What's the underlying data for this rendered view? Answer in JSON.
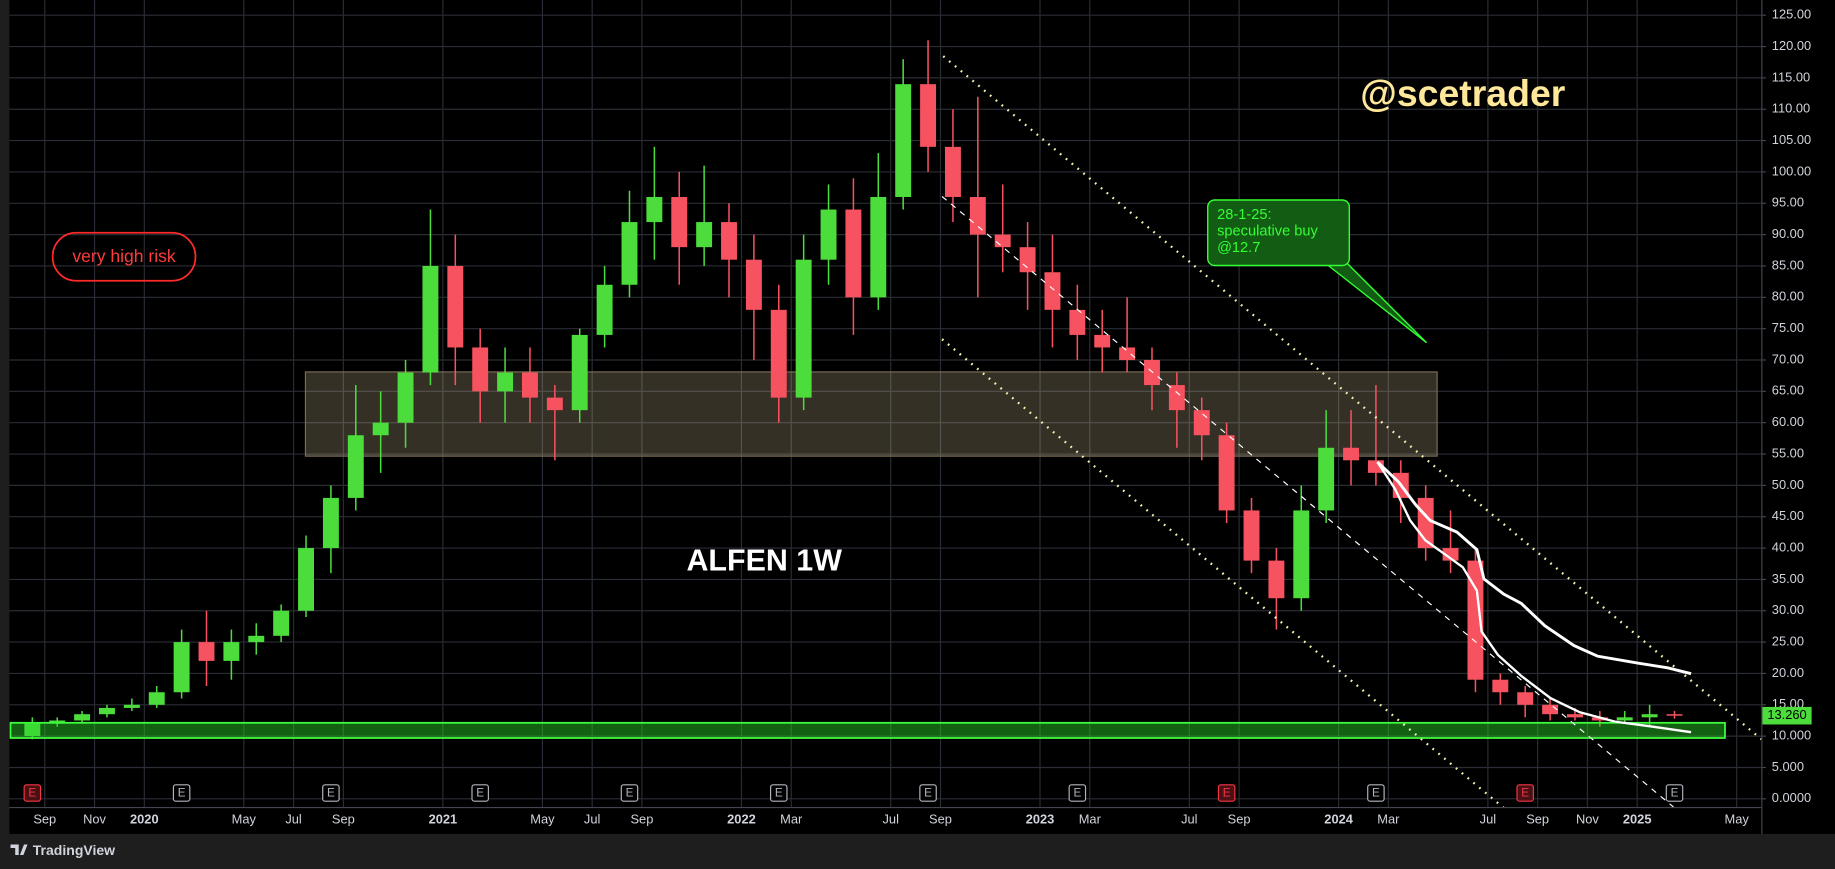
{
  "chart_data": {
    "type": "candlestick",
    "title": "ALFEN 1W",
    "watermark": "@scetrader",
    "x": [
      "2019-08",
      "2019-09",
      "2019-10",
      "2019-11",
      "2019-12",
      "2020-01",
      "2020-02",
      "2020-03",
      "2020-04",
      "2020-05",
      "2020-06",
      "2020-07",
      "2020-08",
      "2020-09",
      "2020-10",
      "2020-11",
      "2020-12",
      "2021-01",
      "2021-02",
      "2021-03",
      "2021-04",
      "2021-05",
      "2021-06",
      "2021-07",
      "2021-08",
      "2021-09",
      "2021-10",
      "2021-11",
      "2021-12",
      "2022-01",
      "2022-02",
      "2022-03",
      "2022-04",
      "2022-05",
      "2022-06",
      "2022-07",
      "2022-08",
      "2022-09",
      "2022-10",
      "2022-11",
      "2022-12",
      "2023-01",
      "2023-02",
      "2023-03",
      "2023-04",
      "2023-05",
      "2023-06",
      "2023-07",
      "2023-08",
      "2023-09",
      "2023-10",
      "2023-11",
      "2023-12",
      "2024-01",
      "2024-02",
      "2024-03",
      "2024-04",
      "2024-05",
      "2024-06",
      "2024-07",
      "2024-08",
      "2024-09",
      "2024-10",
      "2024-11",
      "2024-12",
      "2025-01",
      "2025-02"
    ],
    "open": [
      10,
      12,
      12.5,
      13.5,
      14.5,
      15,
      17,
      25,
      22,
      25,
      26,
      30,
      40,
      48,
      58,
      60,
      68,
      85,
      72,
      65,
      68,
      64,
      62,
      74,
      82,
      92,
      96,
      88,
      92,
      86,
      78,
      64,
      86,
      94,
      80,
      96,
      114,
      104,
      96,
      90,
      88,
      84,
      78,
      74,
      72,
      70,
      66,
      62,
      58,
      46,
      38,
      32,
      46,
      56,
      54,
      52,
      48,
      40,
      38,
      19,
      17,
      15,
      13.5,
      13,
      12.5,
      13,
      13.5
    ],
    "high": [
      13,
      13,
      14,
      15,
      16,
      18,
      27,
      30,
      27,
      28,
      31,
      42,
      50,
      66,
      65,
      70,
      94,
      90,
      75,
      72,
      72,
      66,
      75,
      85,
      97,
      104,
      100,
      101,
      95,
      90,
      82,
      90,
      98,
      99,
      103,
      118,
      121,
      110,
      112,
      98,
      92,
      90,
      82,
      78,
      80,
      72,
      68,
      64,
      60,
      48,
      40,
      50,
      62,
      62,
      66,
      54,
      50,
      46,
      40,
      20,
      18,
      16,
      14.5,
      14,
      14,
      15,
      14
    ],
    "low": [
      9.5,
      11.5,
      12,
      13,
      14,
      14.5,
      16,
      18,
      19,
      23,
      25,
      29,
      36,
      46,
      52,
      56,
      66,
      66,
      60,
      60,
      60,
      54,
      60,
      72,
      80,
      86,
      82,
      85,
      80,
      70,
      60,
      62,
      82,
      74,
      78,
      94,
      100,
      92,
      80,
      84,
      78,
      72,
      70,
      68,
      68,
      62,
      56,
      54,
      44,
      36,
      27,
      30,
      44,
      50,
      50,
      44,
      38,
      36,
      17,
      15,
      13,
      12.5,
      12.5,
      11.5,
      12,
      11.5,
      12.8
    ],
    "close": [
      12,
      12.5,
      13.5,
      14.5,
      15,
      17,
      25,
      22,
      25,
      26,
      30,
      40,
      48,
      58,
      60,
      68,
      85,
      72,
      65,
      68,
      64,
      62,
      74,
      82,
      92,
      96,
      88,
      92,
      86,
      78,
      64,
      86,
      94,
      80,
      96,
      114,
      104,
      96,
      90,
      88,
      84,
      78,
      74,
      72,
      70,
      66,
      62,
      58,
      46,
      38,
      32,
      46,
      56,
      54,
      52,
      48,
      40,
      38,
      19,
      17,
      15,
      13.5,
      13,
      12.5,
      13,
      13.5,
      13.26
    ],
    "up_color": "#4cdd3c",
    "down_color": "#f7525f",
    "last_price": {
      "value": 13.26,
      "label": "13.260"
    },
    "xlim": [
      "2019-08",
      "2025-05"
    ],
    "ylim": [
      0,
      125
    ],
    "grid": true,
    "xticks": [
      {
        "value": "2019-09",
        "label": "Sep"
      },
      {
        "value": "2019-11",
        "label": "Nov"
      },
      {
        "value": "2020-01",
        "label": "2020"
      },
      {
        "value": "2020-05",
        "label": "May"
      },
      {
        "value": "2020-07",
        "label": "Jul"
      },
      {
        "value": "2020-09",
        "label": "Sep"
      },
      {
        "value": "2021-01",
        "label": "2021"
      },
      {
        "value": "2021-05",
        "label": "May"
      },
      {
        "value": "2021-07",
        "label": "Jul"
      },
      {
        "value": "2021-09",
        "label": "Sep"
      },
      {
        "value": "2022-01",
        "label": "2022"
      },
      {
        "value": "2022-03",
        "label": "Mar"
      },
      {
        "value": "2022-07",
        "label": "Jul"
      },
      {
        "value": "2022-09",
        "label": "Sep"
      },
      {
        "value": "2023-01",
        "label": "2023"
      },
      {
        "value": "2023-03",
        "label": "Mar"
      },
      {
        "value": "2023-07",
        "label": "Jul"
      },
      {
        "value": "2023-09",
        "label": "Sep"
      },
      {
        "value": "2024-01",
        "label": "2024"
      },
      {
        "value": "2024-03",
        "label": "Mar"
      },
      {
        "value": "2024-07",
        "label": "Jul"
      },
      {
        "value": "2024-09",
        "label": "Sep"
      },
      {
        "value": "2024-11",
        "label": "Nov"
      },
      {
        "value": "2025-01",
        "label": "2025"
      },
      {
        "value": "2025-05",
        "label": "May"
      }
    ],
    "yticks": [
      {
        "value": 0,
        "label": "0.0000"
      },
      {
        "value": 5,
        "label": "5.000"
      },
      {
        "value": 10,
        "label": "10.000"
      },
      {
        "value": 15,
        "label": "15.00"
      },
      {
        "value": 20,
        "label": "20.00"
      },
      {
        "value": 25,
        "label": "25.00"
      },
      {
        "value": 30,
        "label": "30.00"
      },
      {
        "value": 35,
        "label": "35.00"
      },
      {
        "value": 40,
        "label": "40.00"
      },
      {
        "value": 45,
        "label": "45.00"
      },
      {
        "value": 50,
        "label": "50.00"
      },
      {
        "value": 55,
        "label": "55.00"
      },
      {
        "value": 60,
        "label": "60.00"
      },
      {
        "value": 65,
        "label": "65.00"
      },
      {
        "value": 70,
        "label": "70.00"
      },
      {
        "value": 75,
        "label": "75.00"
      },
      {
        "value": 80,
        "label": "80.00"
      },
      {
        "value": 85,
        "label": "85.00"
      },
      {
        "value": 90,
        "label": "90.00"
      },
      {
        "value": 95,
        "label": "95.00"
      },
      {
        "value": 100,
        "label": "100.00"
      },
      {
        "value": 105,
        "label": "105.00"
      },
      {
        "value": 110,
        "label": "110.00"
      },
      {
        "value": 115,
        "label": "115.00"
      },
      {
        "value": 120,
        "label": "120.00"
      },
      {
        "value": 125,
        "label": "125.00"
      }
    ],
    "events": [
      {
        "x": "2019-08",
        "label": "E",
        "color": "#f23645"
      },
      {
        "x": "2020-02",
        "label": "E",
        "color": "#b2b5be"
      },
      {
        "x": "2020-08",
        "label": "E",
        "color": "#b2b5be"
      },
      {
        "x": "2021-02",
        "label": "E",
        "color": "#b2b5be"
      },
      {
        "x": "2021-08",
        "label": "E",
        "color": "#b2b5be"
      },
      {
        "x": "2022-02",
        "label": "E",
        "color": "#b2b5be"
      },
      {
        "x": "2022-08",
        "label": "E",
        "color": "#b2b5be"
      },
      {
        "x": "2023-02",
        "label": "E",
        "color": "#b2b5be"
      },
      {
        "x": "2023-08",
        "label": "E",
        "color": "#f23645"
      },
      {
        "x": "2024-02",
        "label": "E",
        "color": "#b2b5be"
      },
      {
        "x": "2024-08",
        "label": "E",
        "color": "#f23645"
      },
      {
        "x": "2025-02",
        "label": "E",
        "color": "#b2b5be"
      }
    ],
    "risk_note": "very high risk",
    "trade_note": [
      "28-1-25:",
      "speculative buy",
      "@12.7"
    ]
  },
  "footer": "TradingView"
}
